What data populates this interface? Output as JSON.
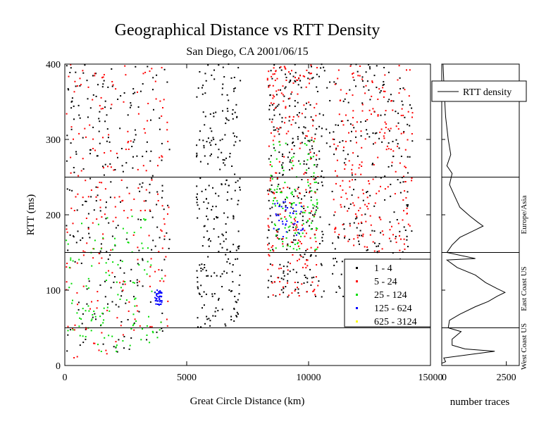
{
  "chart_data": [
    {
      "type": "scatter",
      "title": "Geographical Distance vs RTT Density",
      "subtitle": "San Diego, CA 2001/06/15",
      "xlabel": "Great Circle Distance (km)",
      "ylabel": "RTT (ms)",
      "xlim": [
        0,
        15000
      ],
      "ylim": [
        0,
        400
      ],
      "x_ticks": [
        0,
        5000,
        10000,
        15000
      ],
      "y_ticks": [
        0,
        100,
        200,
        300,
        400
      ],
      "grid": false,
      "reference_lines_ms": [
        50,
        150,
        250
      ],
      "legend": {
        "position": "bottom-right",
        "entries": [
          {
            "label": "1 - 4",
            "color": "#000000"
          },
          {
            "label": "5 - 24",
            "color": "#ff0000"
          },
          {
            "label": "25 - 124",
            "color": "#00dd00"
          },
          {
            "label": "125 - 624",
            "color": "#0000ff"
          },
          {
            "label": "625 - 3124",
            "color": "#ffff00"
          }
        ]
      },
      "series": [
        {
          "name": "1 - 4",
          "clusters": [
            {
              "x_range": [
                50,
                4300
              ],
              "y_range": [
                10,
                400
              ]
            },
            {
              "x_range": [
                5400,
                7200
              ],
              "y_range": [
                50,
                400
              ]
            },
            {
              "x_range": [
                8300,
                10400
              ],
              "y_range": [
                90,
                400
              ]
            },
            {
              "x_range": [
                10400,
                14300
              ],
              "y_range": [
                90,
                400
              ]
            }
          ]
        },
        {
          "name": "5 - 24",
          "clusters": [
            {
              "x_range": [
                50,
                4300
              ],
              "y_range": [
                10,
                400
              ]
            },
            {
              "x_range": [
                8300,
                10400
              ],
              "y_range": [
                90,
                400
              ]
            },
            {
              "x_range": [
                11000,
                14300
              ],
              "y_range": [
                150,
                400
              ]
            }
          ]
        },
        {
          "name": "25 - 124",
          "clusters": [
            {
              "x_range": [
                50,
                4000
              ],
              "y_range": [
                10,
                200
              ]
            },
            {
              "x_range": [
                8400,
                10400
              ],
              "y_range": [
                150,
                300
              ]
            }
          ]
        },
        {
          "name": "125 - 624",
          "clusters": [
            {
              "x_range": [
                3700,
                4000
              ],
              "y_range": [
                80,
                100
              ]
            },
            {
              "x_range": [
                8500,
                9800
              ],
              "y_range": [
                170,
                220
              ]
            }
          ]
        },
        {
          "name": "625 - 3124",
          "clusters": []
        }
      ]
    },
    {
      "type": "line",
      "xlabel": "number traces",
      "x_ticks": [
        0,
        2500
      ],
      "xlim": [
        0,
        3000
      ],
      "ylim": [
        0,
        400
      ],
      "legend": {
        "position": "top-right",
        "entries": [
          {
            "label": "RTT density"
          }
        ]
      },
      "region_labels": [
        "West Coast US",
        "East Coast US",
        "Europe/Asia"
      ],
      "series": [
        {
          "name": "RTT density",
          "points": [
            [
              0,
              3
            ],
            [
              150,
              5
            ],
            [
              80,
              10
            ],
            [
              2050,
              19
            ],
            [
              900,
              22
            ],
            [
              400,
              27
            ],
            [
              400,
              35
            ],
            [
              750,
              45
            ],
            [
              250,
              50
            ],
            [
              300,
              60
            ],
            [
              700,
              68
            ],
            [
              1300,
              78
            ],
            [
              1800,
              85
            ],
            [
              2150,
              92
            ],
            [
              2450,
              97
            ],
            [
              2150,
              102
            ],
            [
              1700,
              110
            ],
            [
              1300,
              120
            ],
            [
              600,
              130
            ],
            [
              200,
              140
            ],
            [
              1300,
              142
            ],
            [
              200,
              150
            ],
            [
              400,
              160
            ],
            [
              700,
              170
            ],
            [
              1300,
              180
            ],
            [
              1600,
              185
            ],
            [
              1400,
              190
            ],
            [
              1100,
              198
            ],
            [
              700,
              210
            ],
            [
              500,
              225
            ],
            [
              300,
              240
            ],
            [
              400,
              255
            ],
            [
              200,
              265
            ],
            [
              350,
              280
            ],
            [
              250,
              300
            ],
            [
              150,
              330
            ],
            [
              100,
              360
            ],
            [
              50,
              400
            ]
          ]
        }
      ]
    }
  ]
}
